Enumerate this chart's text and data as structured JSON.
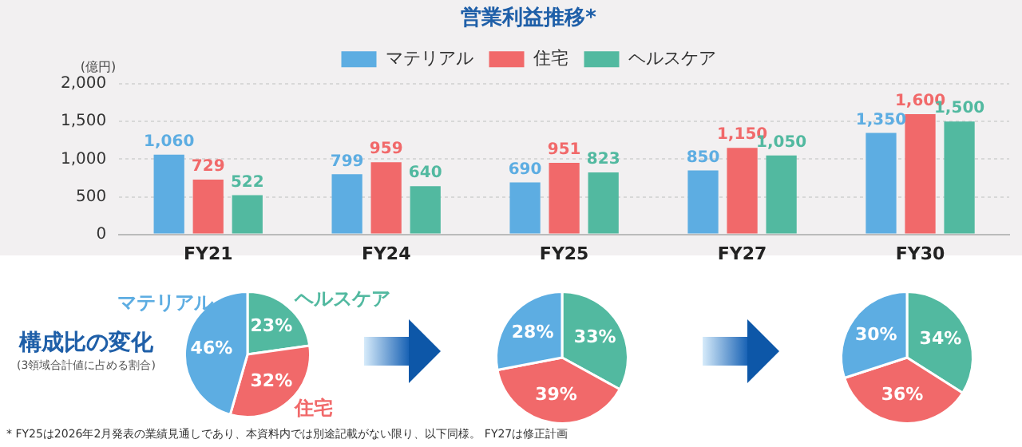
{
  "chart_data": [
    {
      "type": "bar",
      "title": "営業利益推移*",
      "ylabel": "(億円)",
      "categories": [
        "FY21",
        "FY24",
        "FY25",
        "FY27",
        "FY30"
      ],
      "series": [
        {
          "name": "マテリアル",
          "color": "#5dade2",
          "values": [
            1060,
            799,
            690,
            850,
            1350
          ],
          "value_labels": [
            "1,060",
            "799",
            "690",
            "850",
            "1,350"
          ]
        },
        {
          "name": "住宅",
          "color": "#f1696a",
          "values": [
            729,
            959,
            951,
            1150,
            1600
          ],
          "value_labels": [
            "729",
            "959",
            "951",
            "1,150",
            "1,600"
          ]
        },
        {
          "name": "ヘルスケア",
          "color": "#52b9a0",
          "values": [
            522,
            640,
            823,
            1050,
            1500
          ],
          "value_labels": [
            "522",
            "640",
            "823",
            "1,050",
            "1,500"
          ]
        }
      ],
      "ylim": [
        0,
        2000
      ],
      "yticks": [
        0,
        {
          "value": 500,
          "label": "500"
        },
        {
          "value": 1000,
          "label": "1,000"
        },
        {
          "value": 1500,
          "label": "1,500"
        },
        {
          "value": 2000,
          "label": "2,000"
        }
      ],
      "grid": "y",
      "legend": "top",
      "annotations": [
        "* FY25は2026年2月発表の業績見通しであり、本資料内では別途記載がない限り、以下同様。 FY27は修正計画"
      ]
    },
    {
      "type": "pie",
      "title": "構成比の変化",
      "subtitle": "(3領域合計値に占める割合)",
      "categories": [
        "ヘルスケア",
        "住宅",
        "マテリアル"
      ],
      "values": [
        23,
        32,
        46
      ],
      "value_labels": [
        "23%",
        "32%",
        "46%"
      ],
      "colors": [
        "#52b9a0",
        "#f1696a",
        "#5dade2"
      ]
    },
    {
      "type": "pie",
      "categories": [
        null,
        null,
        null
      ],
      "values": [
        33,
        39,
        28
      ],
      "value_labels": [
        "33%",
        "39%",
        "28%"
      ],
      "colors": [
        "#52b9a0",
        "#f1696a",
        "#5dade2"
      ]
    },
    {
      "type": "pie",
      "categories": [
        null,
        null,
        null
      ],
      "values": [
        34,
        36,
        30
      ],
      "value_labels": [
        "34%",
        "36%",
        "30%"
      ],
      "colors": [
        "#52b9a0",
        "#f1696a",
        "#5dade2"
      ]
    }
  ]
}
